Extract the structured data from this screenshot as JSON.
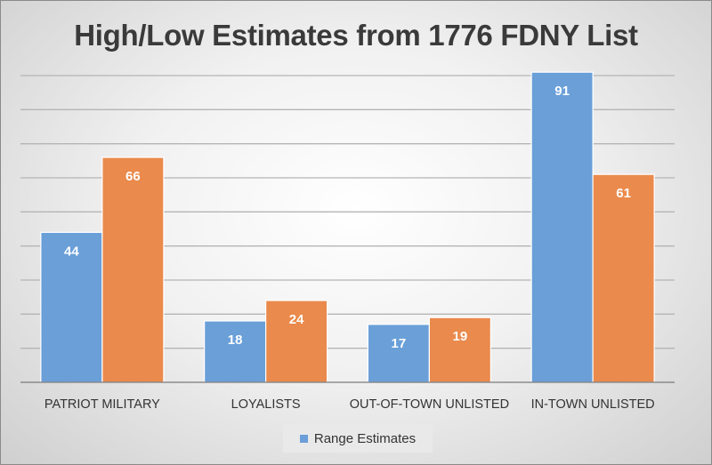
{
  "chart_data": {
    "type": "bar",
    "title": "High/Low Estimates from 1776 FDNY List",
    "categories": [
      "PATRIOT MILITARY",
      "LOYALISTS",
      "OUT-OF-TOWN UNLISTED",
      "IN-TOWN UNLISTED"
    ],
    "series": [
      {
        "name": "Range Estimates",
        "values": [
          44,
          18,
          17,
          91
        ],
        "color": "#6a9fd8"
      },
      {
        "values": [
          66,
          24,
          19,
          61
        ],
        "color": "#ea8a4c"
      }
    ],
    "ylim": [
      0,
      90
    ],
    "grid": true,
    "legend": "bottom"
  }
}
